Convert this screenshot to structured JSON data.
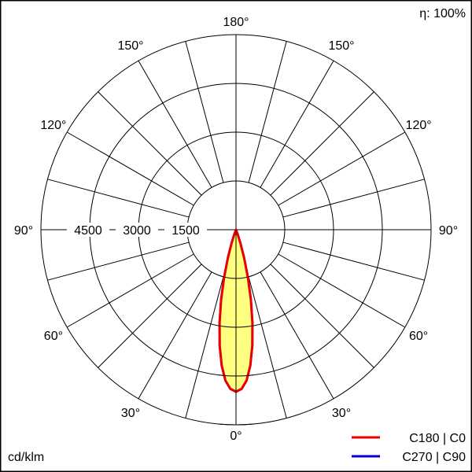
{
  "chart_data": {
    "type": "polar",
    "unit_label": "cd/klm",
    "efficiency_label": "η: 100%",
    "radial_ticks": [
      1500,
      3000,
      4500
    ],
    "radial_max": 6000,
    "angle_labels": [
      "0°",
      "30°",
      "60°",
      "90°",
      "120°",
      "150°",
      "180°",
      "150°",
      "120°",
      "90°",
      "60°",
      "30°"
    ],
    "angle_step_deg": 15,
    "series": [
      {
        "name": "C270 | C90",
        "color": "#0000cc",
        "angles_deg": [
          0,
          2,
          4,
          6,
          8,
          10,
          12,
          14,
          16,
          18,
          20,
          22
        ],
        "values": [
          4980,
          4900,
          4650,
          4200,
          3600,
          2900,
          2200,
          1500,
          900,
          450,
          150,
          0
        ]
      },
      {
        "name": "C180 | C0",
        "color": "#ee0000",
        "fill": "#ffff80",
        "angles_deg": [
          0,
          2,
          4,
          6,
          8,
          10,
          12,
          14,
          16,
          18,
          20,
          22
        ],
        "values": [
          4980,
          4900,
          4650,
          4200,
          3600,
          2900,
          2200,
          1500,
          900,
          450,
          150,
          0
        ]
      }
    ],
    "legend_position": "bottom-right",
    "grid": true
  }
}
